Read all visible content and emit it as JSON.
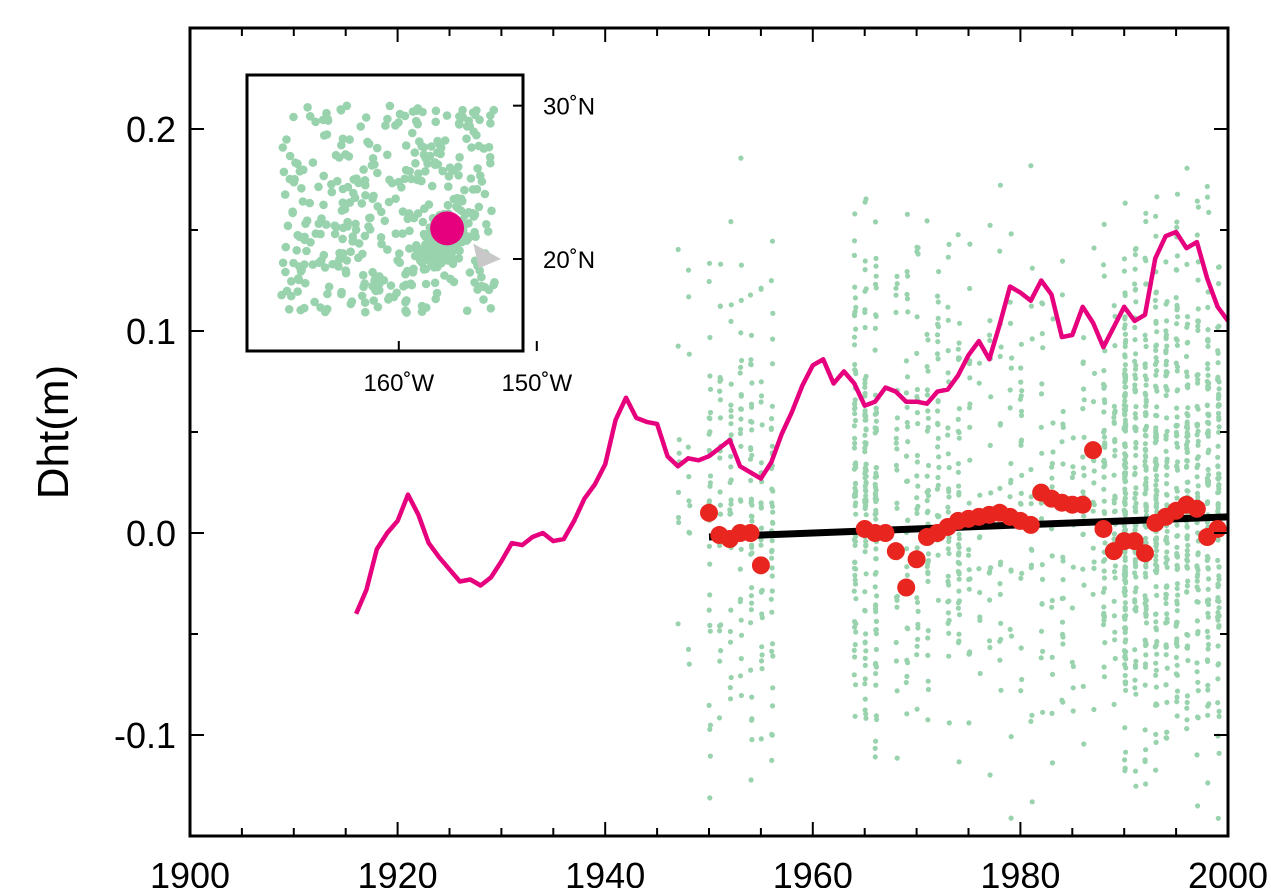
{
  "chart_data": [
    {
      "type": "line+scatter",
      "ylabel": "Dht(m)",
      "xlim": [
        1900,
        2000
      ],
      "ylim": [
        -0.15,
        0.25
      ],
      "x_ticks": [
        "1900",
        "1920",
        "1940",
        "1960",
        "1980",
        "2000"
      ],
      "y_ticks": [
        "-0.1",
        "0.0",
        "0.1",
        "0.2"
      ],
      "y_tick_values": [
        -0.1,
        0.0,
        0.1,
        0.2
      ],
      "x_tick_values": [
        1900,
        1920,
        1940,
        1960,
        1980,
        2000
      ],
      "grid": false,
      "colors": {
        "line": "#e6007e",
        "red_points": "#e8251f",
        "trend": "#000000",
        "background_points": "#99d3ae"
      },
      "series": [
        {
          "style": "line",
          "color": "#e6007e",
          "x": [
            1916,
            1917,
            1918,
            1919,
            1920,
            1921,
            1922,
            1923,
            1924,
            1925,
            1926,
            1927,
            1928,
            1929,
            1930,
            1931,
            1932,
            1933,
            1934,
            1935,
            1936,
            1937,
            1938,
            1939,
            1940,
            1941,
            1942,
            1943,
            1944,
            1945,
            1946,
            1947,
            1948,
            1949,
            1950,
            1951,
            1952,
            1953,
            1954,
            1955,
            1956,
            1957,
            1958,
            1959,
            1960,
            1961,
            1962,
            1963,
            1964,
            1965,
            1966,
            1967,
            1968,
            1969,
            1970,
            1971,
            1972,
            1973,
            1974,
            1975,
            1976,
            1977,
            1978,
            1979,
            1980,
            1981,
            1982,
            1983,
            1984,
            1985,
            1986,
            1987,
            1988,
            1989,
            1990,
            1991,
            1992,
            1993,
            1994,
            1995,
            1996,
            1997,
            1998,
            1999,
            2000
          ],
          "y": [
            -0.04,
            -0.028,
            -0.008,
            0.0,
            0.006,
            0.019,
            0.009,
            -0.005,
            -0.012,
            -0.018,
            -0.024,
            -0.023,
            -0.026,
            -0.022,
            -0.014,
            -0.005,
            -0.006,
            -0.002,
            0.0,
            -0.004,
            -0.003,
            0.006,
            0.017,
            0.024,
            0.034,
            0.056,
            0.067,
            0.057,
            0.055,
            0.054,
            0.038,
            0.033,
            0.037,
            0.036,
            0.038,
            0.042,
            0.046,
            0.033,
            0.03,
            0.027,
            0.035,
            0.049,
            0.06,
            0.073,
            0.083,
            0.086,
            0.074,
            0.08,
            0.074,
            0.063,
            0.065,
            0.072,
            0.07,
            0.065,
            0.065,
            0.064,
            0.07,
            0.071,
            0.078,
            0.088,
            0.095,
            0.086,
            0.103,
            0.122,
            0.119,
            0.115,
            0.125,
            0.118,
            0.097,
            0.098,
            0.112,
            0.104,
            0.092,
            0.102,
            0.112,
            0.105,
            0.108,
            0.136,
            0.147,
            0.149,
            0.141,
            0.144,
            0.126,
            0.112,
            0.105
          ]
        },
        {
          "style": "points",
          "color": "#e8251f",
          "x": [
            1950,
            1951,
            1952,
            1953,
            1954,
            1955,
            1965,
            1966,
            1967,
            1968,
            1969,
            1970,
            1971,
            1972,
            1973,
            1974,
            1975,
            1976,
            1977,
            1978,
            1979,
            1980,
            1981,
            1982,
            1983,
            1984,
            1985,
            1986,
            1987,
            1988,
            1989,
            1990,
            1991,
            1992,
            1993,
            1994,
            1995,
            1996,
            1997,
            1998,
            1999
          ],
          "y": [
            0.01,
            -0.001,
            -0.003,
            0.0,
            0.0,
            -0.016,
            0.002,
            0.0,
            0.0,
            -0.009,
            -0.027,
            -0.013,
            -0.002,
            0.0,
            0.003,
            0.006,
            0.007,
            0.008,
            0.009,
            0.01,
            0.008,
            0.006,
            0.004,
            0.02,
            0.017,
            0.015,
            0.014,
            0.014,
            0.041,
            0.002,
            -0.009,
            -0.004,
            -0.004,
            -0.01,
            0.005,
            0.008,
            0.011,
            0.014,
            0.012,
            -0.002,
            0.002
          ]
        },
        {
          "style": "trend",
          "color": "#000000",
          "x": [
            1950,
            2000
          ],
          "y": [
            -0.002,
            0.008
          ]
        }
      ],
      "background_scatter": {
        "color": "#99d3ae",
        "x_ranges": [
          [
            1947,
            1948
          ],
          [
            1950,
            1956
          ],
          [
            1964,
            1966
          ],
          [
            1968,
            1974
          ],
          [
            1975,
            1987
          ],
          [
            1988,
            1990
          ],
          [
            1990,
            2000
          ]
        ]
      }
    },
    {
      "type": "map-inset",
      "x_tick_labels": [
        "160˚W",
        "150˚W"
      ],
      "y_tick_labels": [
        "30˚N",
        "20˚N"
      ],
      "x_ticks": [
        -160,
        -150
      ],
      "y_ticks": [
        30,
        20
      ],
      "lon_range": [
        -171,
        -151
      ],
      "lat_range": [
        14,
        32
      ],
      "marker": {
        "lon": -156.5,
        "lat": 22.0,
        "color": "#e6007e"
      },
      "station_color": "#99d3ae"
    }
  ]
}
